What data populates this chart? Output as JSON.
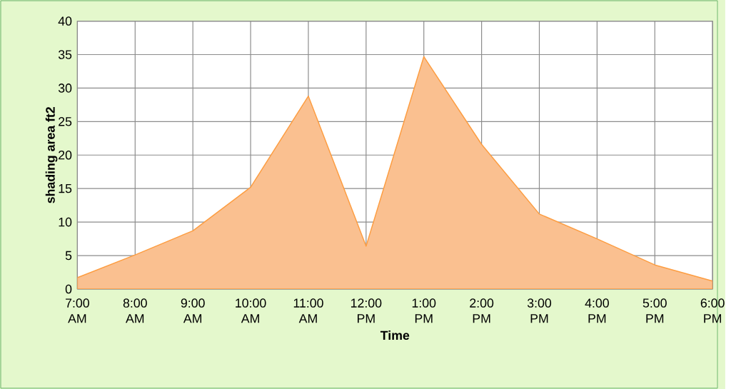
{
  "chart_data": {
    "type": "area",
    "xlabel": "Time",
    "ylabel": "shading area ft2",
    "categories": [
      "7:00 AM",
      "8:00 AM",
      "9:00 AM",
      "10:00 AM",
      "11:00 AM",
      "12:00 PM",
      "1:00 PM",
      "2:00 PM",
      "3:00 PM",
      "4:00 PM",
      "5:00 PM",
      "6:00 PM"
    ],
    "values": [
      1.7,
      5.1,
      8.7,
      15.2,
      28.8,
      6.4,
      34.7,
      21.6,
      11.2,
      7.5,
      3.6,
      1.2
    ],
    "color": "#fac090",
    "ylim": [
      0,
      40
    ],
    "yticks": [
      0,
      5,
      10,
      15,
      20,
      25,
      30,
      35,
      40
    ],
    "grid": true
  }
}
